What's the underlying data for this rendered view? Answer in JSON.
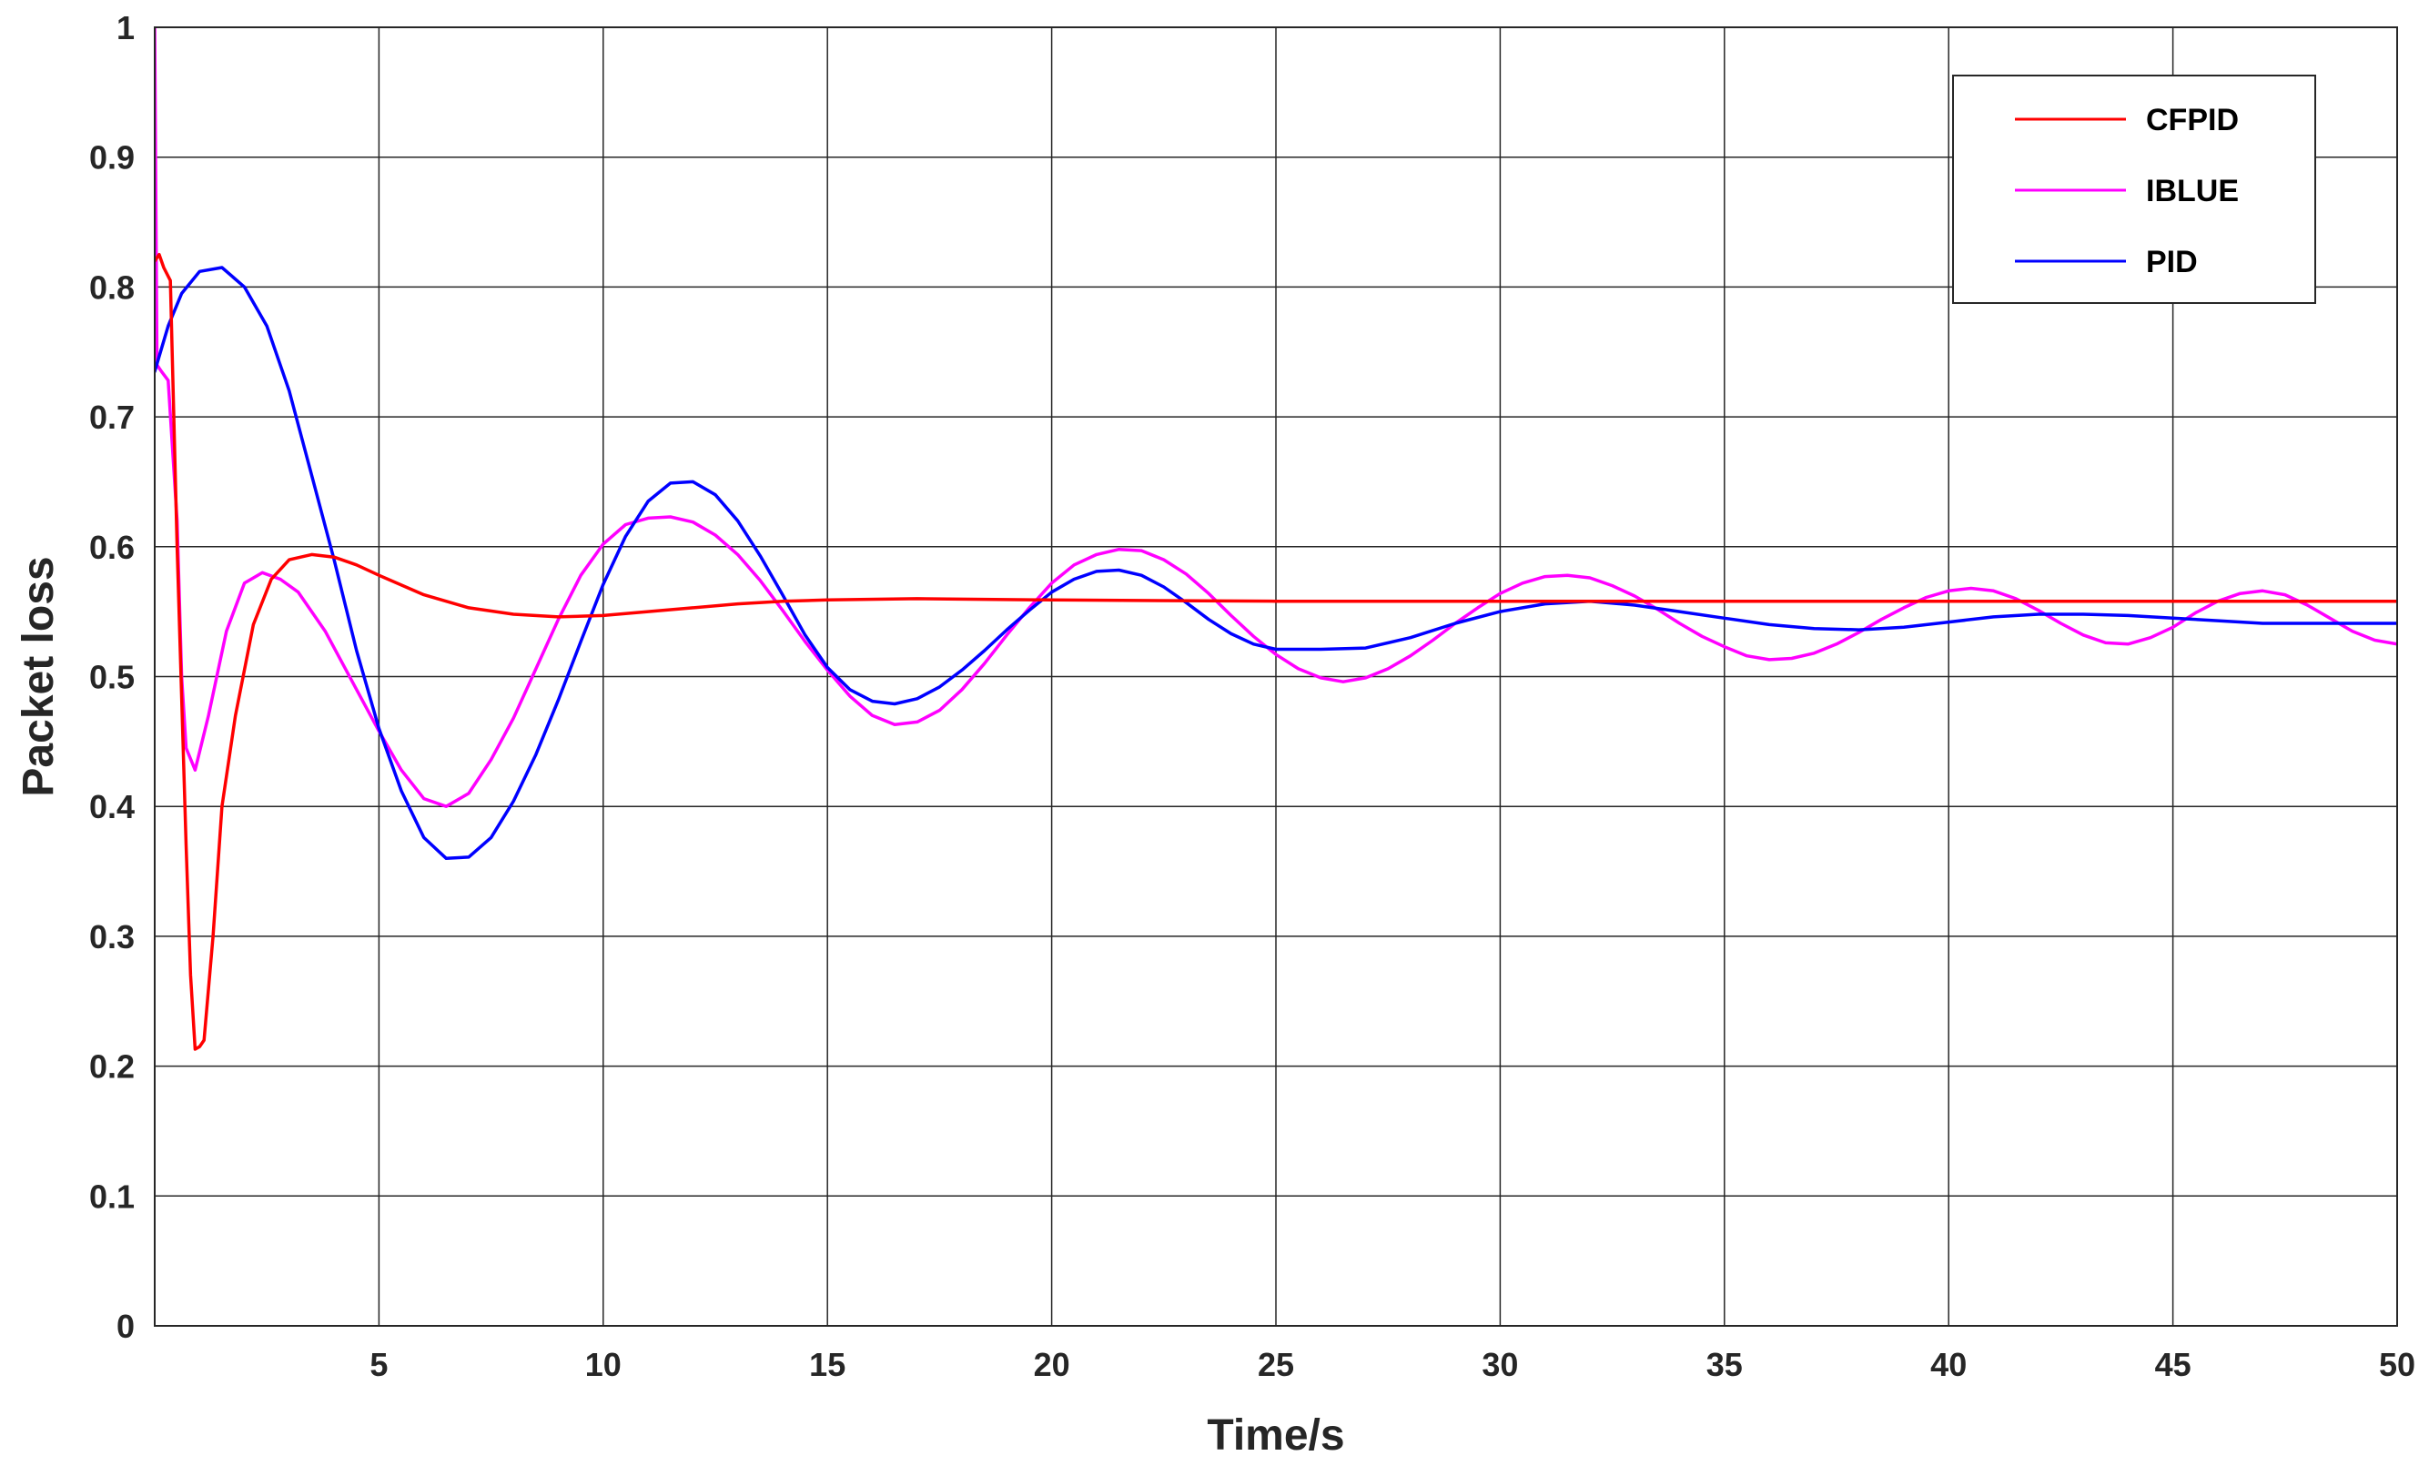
{
  "chart_data": {
    "type": "line",
    "title": "",
    "xlabel": "Time/s",
    "ylabel": "Packet loss",
    "xlim": [
      0,
      50
    ],
    "ylim": [
      0,
      1
    ],
    "xticks": [
      5,
      10,
      15,
      20,
      25,
      30,
      35,
      40,
      45,
      50
    ],
    "yticks": [
      0,
      0.1,
      0.2,
      0.3,
      0.4,
      0.5,
      0.6,
      0.7,
      0.8,
      0.9,
      1
    ],
    "xtick_labels": [
      "5",
      "10",
      "15",
      "20",
      "25",
      "30",
      "35",
      "40",
      "45",
      "50"
    ],
    "ytick_labels": [
      "0",
      "0.1",
      "0.2",
      "0.3",
      "0.4",
      "0.5",
      "0.6",
      "0.7",
      "0.8",
      "0.9",
      "1"
    ],
    "grid": true,
    "legend_position": "top-right",
    "series": [
      {
        "name": "CFPID",
        "color": "#ff0000",
        "x": [
          0,
          0.1,
          0.2,
          0.35,
          0.5,
          0.7,
          0.8,
          0.9,
          1.0,
          1.1,
          1.3,
          1.5,
          1.8,
          2.2,
          2.6,
          3.0,
          3.5,
          4.0,
          4.5,
          5.0,
          6.0,
          7.0,
          8.0,
          9.0,
          10.0,
          11.0,
          12.0,
          13.0,
          14.0,
          15.0,
          17.0,
          20.0,
          25.0,
          30.0,
          35.0,
          40.0,
          45.0,
          50.0
        ],
        "y": [
          0.82,
          0.825,
          0.815,
          0.805,
          0.6,
          0.37,
          0.27,
          0.213,
          0.215,
          0.22,
          0.3,
          0.4,
          0.47,
          0.54,
          0.575,
          0.59,
          0.594,
          0.592,
          0.586,
          0.578,
          0.563,
          0.553,
          0.548,
          0.546,
          0.547,
          0.55,
          0.553,
          0.556,
          0.558,
          0.559,
          0.56,
          0.559,
          0.558,
          0.558,
          0.558,
          0.558,
          0.558,
          0.558
        ]
      },
      {
        "name": "IBLUE",
        "color": "#ff00ff",
        "x": [
          0,
          0.05,
          0.15,
          0.3,
          0.5,
          0.6,
          0.7,
          0.9,
          1.2,
          1.6,
          2.0,
          2.4,
          2.8,
          3.2,
          3.8,
          4.5,
          5.0,
          5.5,
          6.0,
          6.5,
          7.0,
          7.5,
          8.0,
          8.5,
          9.0,
          9.5,
          10.0,
          10.5,
          11.0,
          11.5,
          12.0,
          12.5,
          13.0,
          13.5,
          14.0,
          14.5,
          15.0,
          15.5,
          16.0,
          16.5,
          17.0,
          17.5,
          18.0,
          18.5,
          19.0,
          19.5,
          20.0,
          20.5,
          21.0,
          21.5,
          22.0,
          22.5,
          23.0,
          23.5,
          24.0,
          24.5,
          25.0,
          25.5,
          26.0,
          26.5,
          27.0,
          27.5,
          28.0,
          28.5,
          29.0,
          29.5,
          30.0,
          30.5,
          31.0,
          31.5,
          32.0,
          32.5,
          33.0,
          33.5,
          34.0,
          34.5,
          35.0,
          35.5,
          36.0,
          36.5,
          37.0,
          37.5,
          38.0,
          38.5,
          39.0,
          39.5,
          40.0,
          40.5,
          41.0,
          41.5,
          42.0,
          42.5,
          43.0,
          43.5,
          44.0,
          44.5,
          45.0,
          45.5,
          46.0,
          46.5,
          47.0,
          47.5,
          48.0,
          48.5,
          49.0,
          49.5,
          50.0
        ],
        "y": [
          1.0,
          0.74,
          0.735,
          0.728,
          0.62,
          0.5,
          0.445,
          0.428,
          0.47,
          0.535,
          0.572,
          0.58,
          0.575,
          0.565,
          0.535,
          0.49,
          0.458,
          0.428,
          0.406,
          0.4,
          0.41,
          0.436,
          0.468,
          0.506,
          0.544,
          0.578,
          0.602,
          0.617,
          0.622,
          0.623,
          0.619,
          0.609,
          0.594,
          0.574,
          0.551,
          0.527,
          0.505,
          0.485,
          0.47,
          0.463,
          0.465,
          0.474,
          0.49,
          0.51,
          0.532,
          0.553,
          0.572,
          0.586,
          0.594,
          0.598,
          0.597,
          0.59,
          0.579,
          0.564,
          0.547,
          0.531,
          0.517,
          0.506,
          0.499,
          0.496,
          0.499,
          0.506,
          0.516,
          0.528,
          0.541,
          0.553,
          0.564,
          0.572,
          0.577,
          0.578,
          0.576,
          0.57,
          0.562,
          0.552,
          0.541,
          0.531,
          0.523,
          0.516,
          0.513,
          0.514,
          0.518,
          0.525,
          0.534,
          0.544,
          0.553,
          0.561,
          0.566,
          0.568,
          0.566,
          0.56,
          0.551,
          0.541,
          0.532,
          0.526,
          0.525,
          0.53,
          0.538,
          0.549,
          0.558,
          0.564,
          0.566,
          0.563,
          0.555,
          0.545,
          0.535,
          0.528,
          0.525
        ]
      },
      {
        "name": "PID",
        "color": "#0000ff",
        "x": [
          0,
          0.3,
          0.6,
          1.0,
          1.5,
          2.0,
          2.5,
          3.0,
          3.5,
          4.0,
          4.5,
          5.0,
          5.5,
          6.0,
          6.5,
          7.0,
          7.5,
          8.0,
          8.5,
          9.0,
          9.5,
          10.0,
          10.5,
          11.0,
          11.5,
          12.0,
          12.5,
          13.0,
          13.5,
          14.0,
          14.5,
          15.0,
          15.5,
          16.0,
          16.5,
          17.0,
          17.5,
          18.0,
          18.5,
          19.0,
          19.5,
          20.0,
          20.5,
          21.0,
          21.5,
          22.0,
          22.5,
          23.0,
          23.5,
          24.0,
          24.5,
          25.0,
          26.0,
          27.0,
          28.0,
          29.0,
          30.0,
          31.0,
          32.0,
          33.0,
          34.0,
          35.0,
          36.0,
          37.0,
          38.0,
          39.0,
          40.0,
          41.0,
          42.0,
          43.0,
          44.0,
          45.0,
          46.0,
          47.0,
          48.0,
          49.0,
          50.0
        ],
        "y": [
          0.735,
          0.77,
          0.795,
          0.812,
          0.815,
          0.8,
          0.77,
          0.72,
          0.655,
          0.59,
          0.52,
          0.46,
          0.412,
          0.376,
          0.36,
          0.361,
          0.376,
          0.404,
          0.44,
          0.482,
          0.527,
          0.571,
          0.608,
          0.635,
          0.649,
          0.65,
          0.64,
          0.62,
          0.593,
          0.563,
          0.532,
          0.507,
          0.49,
          0.481,
          0.479,
          0.483,
          0.492,
          0.505,
          0.52,
          0.536,
          0.551,
          0.565,
          0.575,
          0.581,
          0.582,
          0.578,
          0.569,
          0.557,
          0.544,
          0.533,
          0.525,
          0.521,
          0.521,
          0.522,
          0.53,
          0.541,
          0.55,
          0.556,
          0.558,
          0.555,
          0.55,
          0.545,
          0.54,
          0.537,
          0.536,
          0.538,
          0.542,
          0.546,
          0.548,
          0.548,
          0.547,
          0.545,
          0.543,
          0.541,
          0.541,
          0.541,
          0.541
        ]
      }
    ]
  }
}
